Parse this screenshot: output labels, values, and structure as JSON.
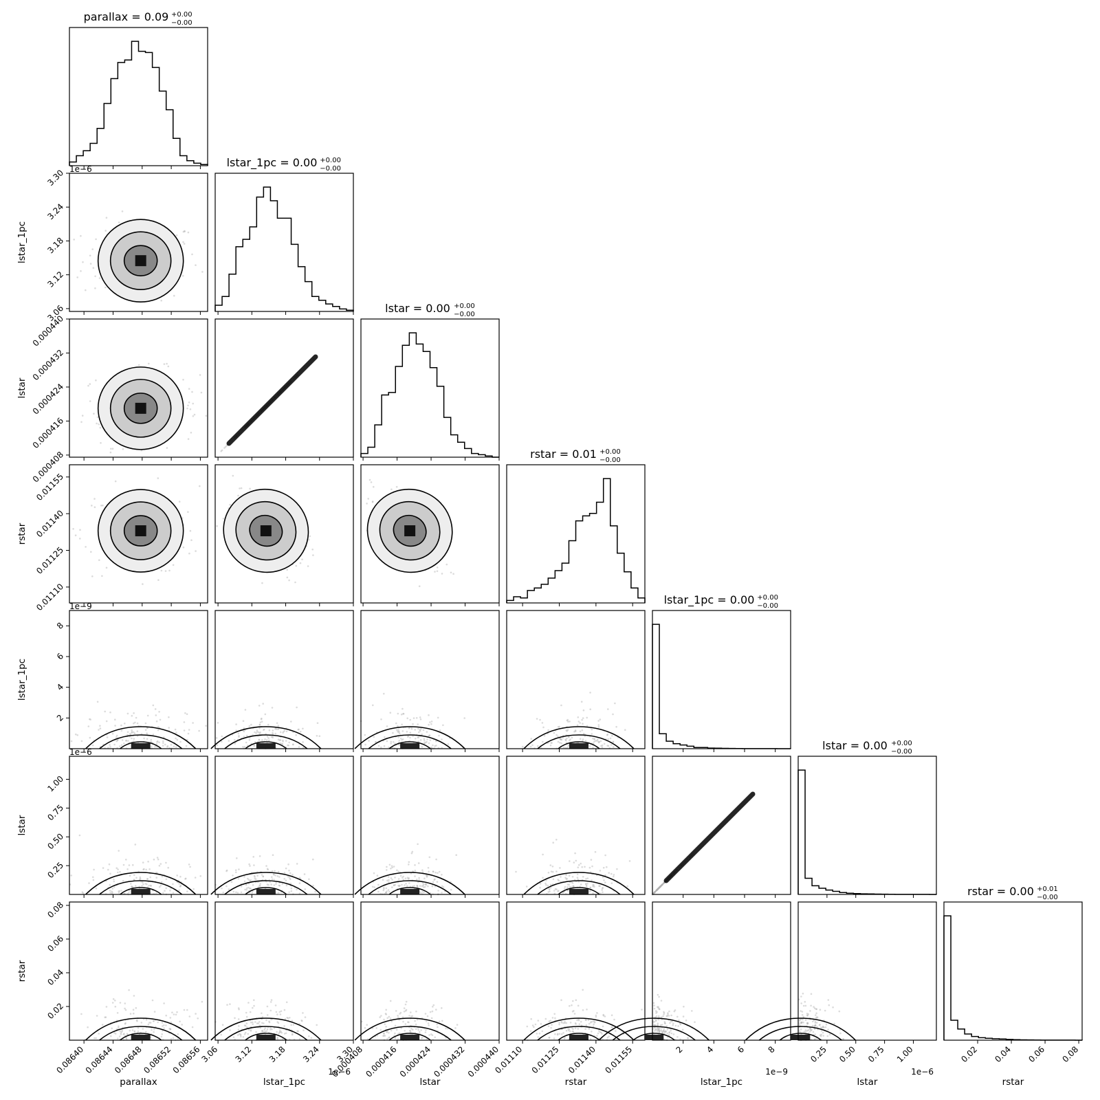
{
  "chart_data": {
    "type": "corner",
    "params": [
      {
        "name": "parallax",
        "title": "parallax = 0.09",
        "sup": "+0.00",
        "sub": "−0.00",
        "range": [
          0.08638,
          0.08657
        ],
        "ticks": [
          0.0864,
          0.08644,
          0.08648,
          0.08652,
          0.08656
        ],
        "ticklabels": [
          "0.08640",
          "0.08644",
          "0.08648",
          "0.08652",
          "0.08656"
        ],
        "offset": "",
        "hist": [
          0.03,
          0.08,
          0.12,
          0.18,
          0.3,
          0.5,
          0.7,
          0.83,
          0.85,
          1.0,
          0.92,
          0.91,
          0.79,
          0.6,
          0.45,
          0.22,
          0.08,
          0.04,
          0.02,
          0.01
        ],
        "center": 0.086478,
        "spread": 4e-05
      },
      {
        "name": "lstar_1pc",
        "title": "lstar_1pc = 0.00",
        "sup": "+0.00",
        "sub": "−0.00",
        "range": [
          3.055,
          3.3
        ],
        "ticks": [
          3.06,
          3.12,
          3.18,
          3.24,
          3.3
        ],
        "ticklabels": [
          "3.06",
          "3.12",
          "3.18",
          "3.24",
          "3.30"
        ],
        "offset": "1e−6",
        "hist": [
          0.05,
          0.12,
          0.3,
          0.52,
          0.58,
          0.68,
          0.92,
          1.0,
          0.89,
          0.75,
          0.75,
          0.54,
          0.36,
          0.24,
          0.12,
          0.09,
          0.06,
          0.04,
          0.02,
          0.01
        ],
        "center": 3.145,
        "spread": 0.035
      },
      {
        "name": "lstar",
        "title": "lstar = 0.00",
        "sup": "+0.00",
        "sub": "−0.00",
        "range": [
          0.0004075,
          0.00044
        ],
        "ticks": [
          0.000408,
          0.000416,
          0.000424,
          0.000432,
          0.00044
        ],
        "ticklabels": [
          "0.000408",
          "0.000416",
          "0.000424",
          "0.000432",
          "0.000440"
        ],
        "offset": "",
        "hist": [
          0.03,
          0.08,
          0.26,
          0.5,
          0.52,
          0.73,
          0.9,
          1.0,
          0.91,
          0.85,
          0.72,
          0.57,
          0.32,
          0.18,
          0.12,
          0.07,
          0.03,
          0.02,
          0.01,
          0.0
        ],
        "center": 0.000419,
        "spread": 4.5e-06
      },
      {
        "name": "rstar",
        "title": "rstar = 0.01",
        "sup": "+0.00",
        "sub": "−0.00",
        "range": [
          0.011035,
          0.0116
        ],
        "ticks": [
          0.0111,
          0.01125,
          0.0114,
          0.01155
        ],
        "ticklabels": [
          "0.01110",
          "0.01125",
          "0.01140",
          "0.01155"
        ],
        "offset": "",
        "hist": [
          0.02,
          0.05,
          0.04,
          0.1,
          0.12,
          0.15,
          0.2,
          0.26,
          0.32,
          0.5,
          0.66,
          0.7,
          0.72,
          0.81,
          1.0,
          0.62,
          0.4,
          0.25,
          0.12,
          0.04
        ],
        "center": 0.01133,
        "spread": 9e-05
      },
      {
        "name": "lstar_1pc",
        "title": "lstar_1pc = 0.00",
        "sup": "+0.00",
        "sub": "−0.00",
        "range": [
          0.0,
          9.0
        ],
        "ticks": [
          2,
          4,
          6,
          8
        ],
        "ticklabels": [
          "2",
          "4",
          "6",
          "8"
        ],
        "offset": "1e−9",
        "hist": [
          1.0,
          0.12,
          0.06,
          0.04,
          0.03,
          0.02,
          0.01,
          0.01,
          0.005,
          0.004,
          0.003,
          0.002,
          0.0015,
          0.001,
          0.0008,
          0.0006,
          0.0005,
          0.0004,
          0.0003,
          0.0002
        ],
        "center": 0.1,
        "spread": 0.4
      },
      {
        "name": "lstar",
        "title": "lstar = 0.00",
        "sup": "+0.00",
        "sub": "−0.00",
        "range": [
          0.0,
          1.2
        ],
        "ticks": [
          0.25,
          0.5,
          0.75,
          1.0
        ],
        "ticklabels": [
          "0.25",
          "0.50",
          "0.75",
          "1.00"
        ],
        "offset": "1e−6",
        "hist": [
          1.0,
          0.13,
          0.07,
          0.05,
          0.035,
          0.025,
          0.015,
          0.01,
          0.007,
          0.005,
          0.004,
          0.003,
          0.002,
          0.0015,
          0.001,
          0.0008,
          0.0006,
          0.0005,
          0.0004,
          0.0003
        ],
        "center": 0.02,
        "spread": 0.06
      },
      {
        "name": "rstar",
        "title": "rstar = 0.00",
        "sup": "+0.01",
        "sub": "−0.00",
        "range": [
          0.0,
          0.082
        ],
        "ticks": [
          0.02,
          0.04,
          0.06,
          0.08
        ],
        "ticklabels": [
          "0.02",
          "0.04",
          "0.06",
          "0.08"
        ],
        "offset": "",
        "hist": [
          1.0,
          0.16,
          0.09,
          0.05,
          0.03,
          0.02,
          0.015,
          0.012,
          0.01,
          0.006,
          0.004,
          0.003,
          0.002,
          0.0015,
          0.001,
          0.001,
          0.0008,
          0.0006,
          0.0004,
          0.0003
        ],
        "center": 0.002,
        "spread": 0.005
      }
    ],
    "ylabel_ticks": {
      "1": {
        "ticks": [
          3.06,
          3.12,
          3.18,
          3.24,
          3.3
        ],
        "ticklabels": [
          "3.06",
          "3.12",
          "3.18",
          "3.24",
          "3.30"
        ]
      },
      "2": {
        "ticks": [
          0.000408,
          0.000416,
          0.000424,
          0.000432,
          0.00044
        ],
        "ticklabels": [
          "0.000408",
          "0.000416",
          "0.000424",
          "0.000432",
          "0.000440"
        ]
      },
      "3": {
        "ticks": [
          0.0111,
          0.01125,
          0.0114,
          0.01155
        ],
        "ticklabels": [
          "0.01110",
          "0.01125",
          "0.01140",
          "0.01155"
        ]
      },
      "4": {
        "ticks": [
          2,
          4,
          6,
          8
        ],
        "ticklabels": [
          "2",
          "4",
          "6",
          "8"
        ]
      },
      "5": {
        "ticks": [
          0.25,
          0.5,
          0.75,
          1.0
        ],
        "ticklabels": [
          "0.25",
          "0.50",
          "0.75",
          "1.00"
        ]
      },
      "6": {
        "ticks": [
          0.02,
          0.04,
          0.06,
          0.08
        ],
        "ticklabels": [
          "0.02",
          "0.04",
          "0.06",
          "0.08"
        ]
      }
    },
    "grid": false
  }
}
